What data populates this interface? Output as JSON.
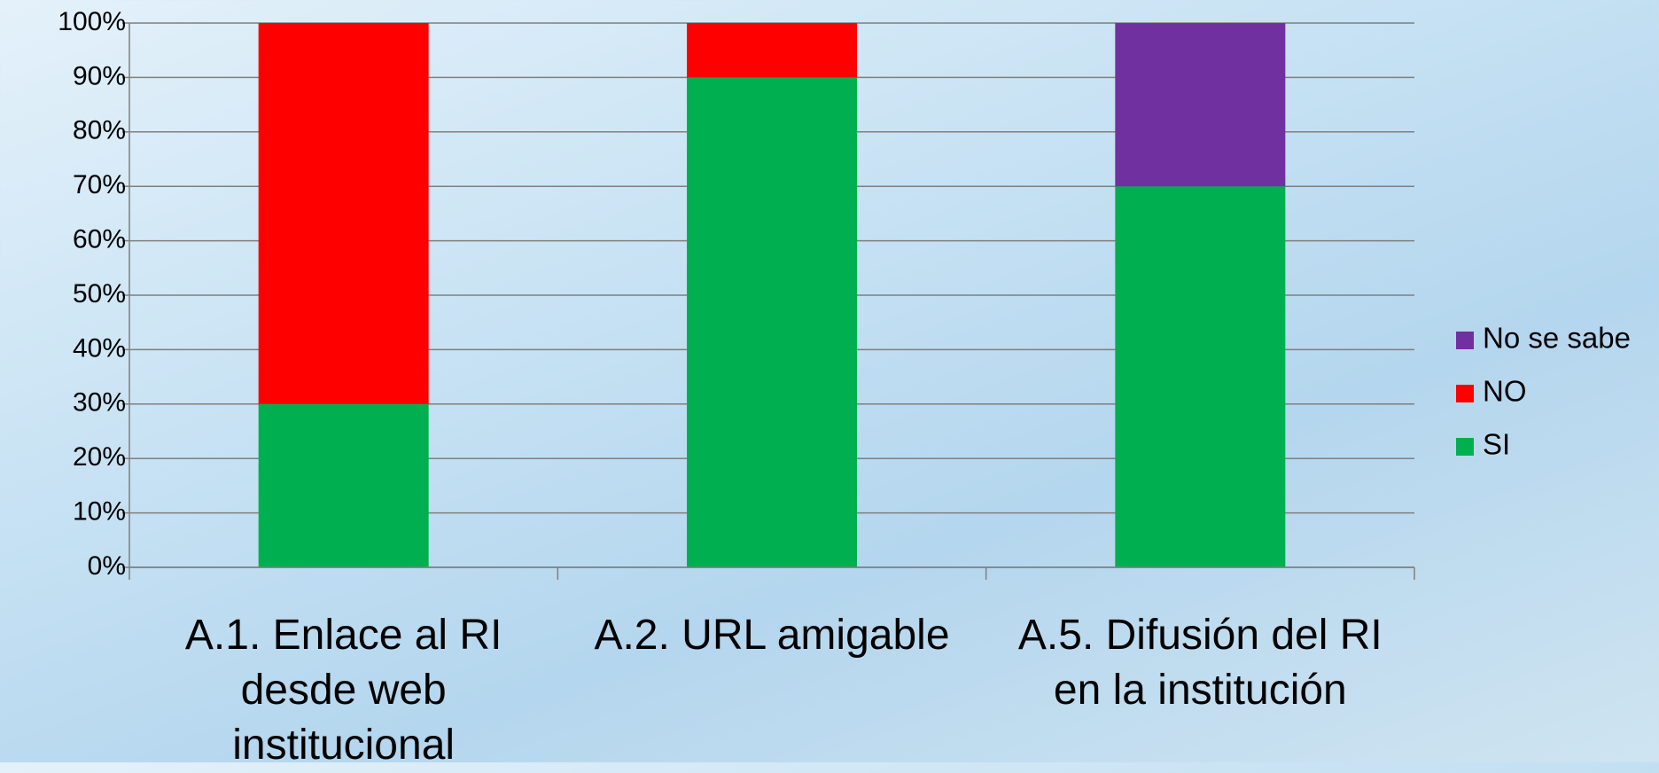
{
  "chart_data": {
    "type": "stacked_bar",
    "categories": [
      "A.1. Enlace al RI desde web institucional",
      "A.2. URL amigable",
      "A.5. Difusión del RI en la institución"
    ],
    "series": [
      {
        "name": "SI",
        "color": "#00b050",
        "values": [
          30,
          90,
          70
        ]
      },
      {
        "name": "NO",
        "color": "#ff0000",
        "values": [
          70,
          10,
          0
        ]
      },
      {
        "name": "No se sabe",
        "color": "#7030a0",
        "values": [
          0,
          0,
          30
        ]
      }
    ],
    "ylim": [
      0,
      100
    ],
    "yticks": [
      {
        "value": 0,
        "label": "0%"
      },
      {
        "value": 10,
        "label": "10%"
      },
      {
        "value": 20,
        "label": "20%"
      },
      {
        "value": 30,
        "label": "30%"
      },
      {
        "value": 40,
        "label": "40%"
      },
      {
        "value": 50,
        "label": "50%"
      },
      {
        "value": 60,
        "label": "60%"
      },
      {
        "value": 70,
        "label": "70%"
      },
      {
        "value": 80,
        "label": "80%"
      },
      {
        "value": 90,
        "label": "90%"
      },
      {
        "value": 100,
        "label": "100%"
      }
    ],
    "grid": true,
    "legend": "right"
  }
}
